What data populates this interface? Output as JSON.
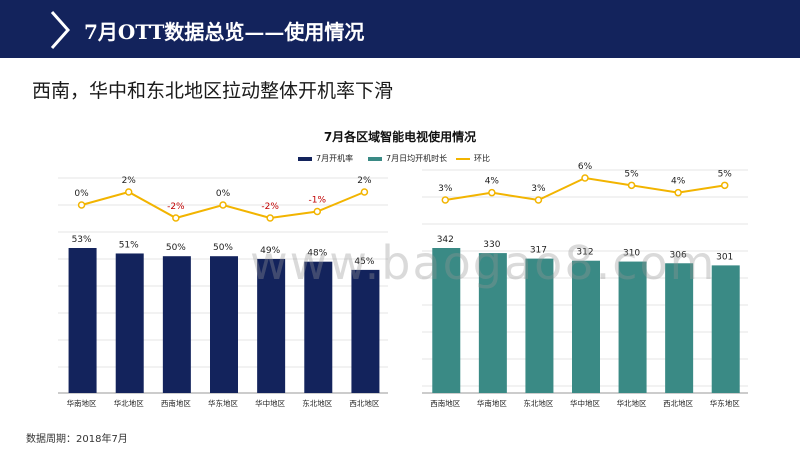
{
  "header": {
    "title": "7月OTT数据总览——使用情况"
  },
  "subtitle": "西南，华中和东北地区拉动整体开机率下滑",
  "footnote": "数据周期：2018年7月",
  "watermark": "www.baogao8.com",
  "colors": {
    "navy": "#13235c",
    "teal": "#3a8a85",
    "gold": "#f2b400",
    "neg": "#c00000"
  },
  "chart_data": {
    "title": "7月各区域智能电视使用情况",
    "legend": [
      "7月开机率",
      "7月日均开机时长",
      "环比"
    ],
    "charts": [
      {
        "type": "bar",
        "series_name": "7月开机率",
        "categories": [
          "华南地区",
          "华北地区",
          "西南地区",
          "华东地区",
          "华中地区",
          "东北地区",
          "西北地区"
        ],
        "values": [
          53,
          51,
          50,
          50,
          49,
          48,
          45
        ],
        "value_labels": [
          "53%",
          "51%",
          "50%",
          "50%",
          "49%",
          "48%",
          "45%"
        ],
        "growth": [
          0,
          2,
          -2,
          0,
          -2,
          -1,
          2
        ],
        "growth_labels": [
          "0%",
          "2%",
          "-2%",
          "0%",
          "-2%",
          "-1%",
          "2%"
        ],
        "ylim": [
          0,
          60
        ]
      },
      {
        "type": "bar",
        "series_name": "7月日均开机时长",
        "categories": [
          "西南地区",
          "华南地区",
          "东北地区",
          "华中地区",
          "华北地区",
          "西北地区",
          "华东地区"
        ],
        "values": [
          342,
          330,
          317,
          312,
          310,
          306,
          301
        ],
        "value_labels": [
          "342",
          "330",
          "317",
          "312",
          "310",
          "306",
          "301"
        ],
        "growth": [
          3,
          4,
          3,
          6,
          5,
          4,
          5
        ],
        "growth_labels": [
          "3%",
          "4%",
          "3%",
          "6%",
          "5%",
          "4%",
          "5%"
        ],
        "ylim": [
          0,
          380
        ]
      }
    ]
  }
}
